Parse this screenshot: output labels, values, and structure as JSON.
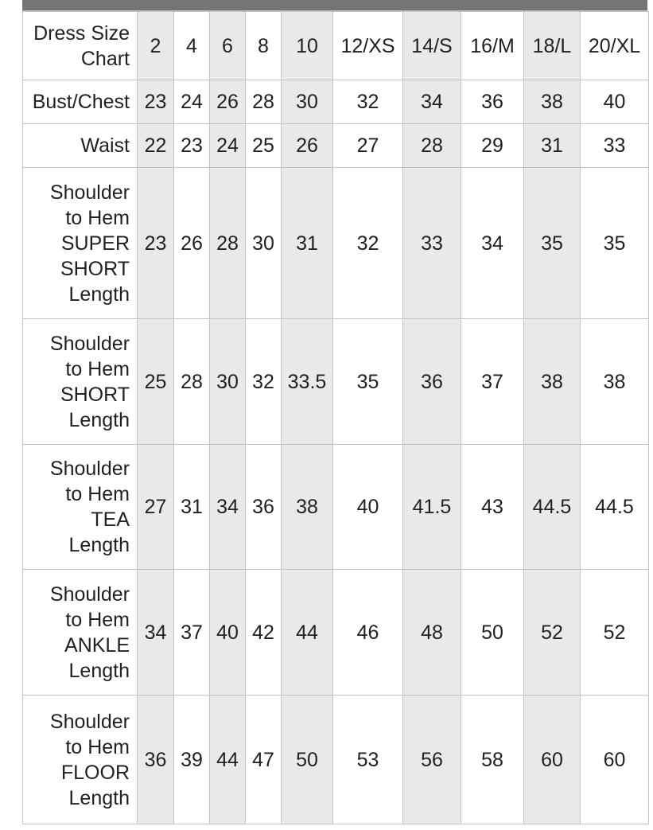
{
  "page": {
    "top_bar_color": "#757575",
    "shaded_column_color": "#e9e9e9",
    "border_color": "#c4c4c4",
    "text_color": "#212121"
  },
  "chart_data": {
    "type": "table",
    "title": "Dress Size Chart",
    "corner_label": "Dress Size Chart",
    "corner_label_display": "Dress Size\nChart",
    "columns": [
      "2",
      "4",
      "6",
      "8",
      "10",
      "12/XS",
      "14/S",
      "16/M",
      "18/L",
      "20/XL"
    ],
    "shaded_column_indices": [
      0,
      2,
      4,
      6,
      8
    ],
    "rows": [
      {
        "label": "Bust/Chest",
        "label_display": "Bust/Chest",
        "values": [
          23,
          24,
          26,
          28,
          30,
          32,
          34,
          36,
          38,
          40
        ]
      },
      {
        "label": "Waist",
        "label_display": "Waist",
        "values": [
          22,
          23,
          24,
          25,
          26,
          27,
          28,
          29,
          31,
          33
        ]
      },
      {
        "label": "Shoulder to Hem SUPER SHORT Length",
        "label_display": "Shoulder\nto Hem\nSUPER\nSHORT\nLength",
        "values": [
          23,
          26,
          28,
          30,
          31,
          32,
          33,
          34,
          35,
          35
        ]
      },
      {
        "label": "Shoulder to Hem SHORT Length",
        "label_display": "Shoulder\nto Hem\nSHORT\nLength",
        "values": [
          25,
          28,
          30,
          32,
          33.5,
          35,
          36,
          37,
          38,
          38
        ]
      },
      {
        "label": "Shoulder to Hem TEA Length",
        "label_display": "Shoulder\nto Hem\nTEA\nLength",
        "values": [
          27,
          31,
          34,
          36,
          38,
          40,
          41.5,
          43,
          44.5,
          44.5
        ]
      },
      {
        "label": "Shoulder to Hem ANKLE Length",
        "label_display": "Shoulder\nto Hem\nANKLE\nLength",
        "values": [
          34,
          37,
          40,
          42,
          44,
          46,
          48,
          50,
          52,
          52
        ]
      },
      {
        "label": "Shoulder to Hem FLOOR Length",
        "label_display": "Shoulder\nto Hem\nFLOOR\nLength",
        "values": [
          36,
          39,
          44,
          47,
          50,
          53,
          56,
          58,
          60,
          60
        ]
      }
    ]
  }
}
